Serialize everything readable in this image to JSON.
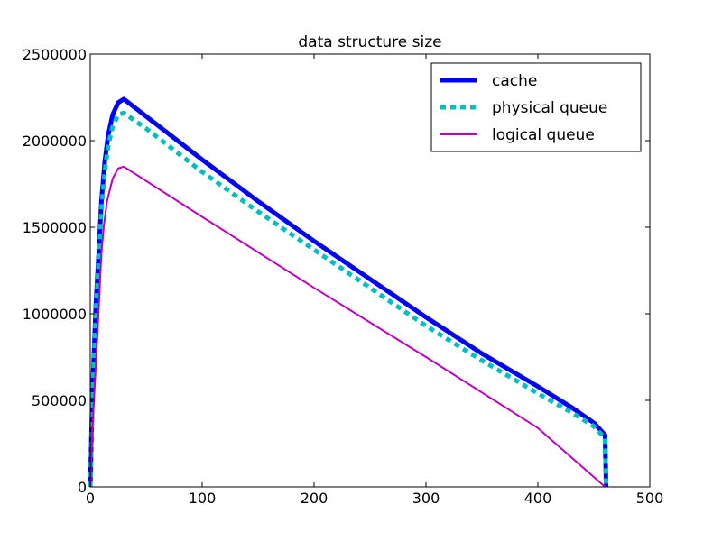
{
  "chart_data": {
    "type": "line",
    "title": "data structure size",
    "xlabel": "",
    "ylabel": "",
    "xlim": [
      0,
      500
    ],
    "ylim": [
      0,
      2500000
    ],
    "xticks": [
      0,
      100,
      200,
      300,
      400,
      500
    ],
    "yticks": [
      0,
      500000,
      1000000,
      1500000,
      2000000,
      2500000
    ],
    "grid": false,
    "legend_position": "upper right",
    "series": [
      {
        "name": "cache",
        "color": "#0000ff",
        "style": "solid-thick",
        "x": [
          0,
          2,
          5,
          8,
          10,
          13,
          16,
          20,
          25,
          30,
          50,
          100,
          150,
          200,
          250,
          300,
          350,
          400,
          430,
          450,
          460,
          460.5,
          461
        ],
        "y": [
          0,
          550000,
          1050000,
          1400000,
          1650000,
          1880000,
          2030000,
          2150000,
          2220000,
          2240000,
          2140000,
          1890000,
          1650000,
          1420000,
          1200000,
          980000,
          770000,
          580000,
          460000,
          370000,
          300000,
          150000,
          0
        ]
      },
      {
        "name": "physical queue",
        "color": "#00bfbf",
        "style": "dashed-thick",
        "x": [
          0,
          2,
          5,
          8,
          10,
          13,
          16,
          20,
          25,
          30,
          50,
          100,
          150,
          200,
          250,
          300,
          350,
          400,
          430,
          450,
          460,
          460.5,
          461
        ],
        "y": [
          0,
          520000,
          1000000,
          1350000,
          1600000,
          1820000,
          1970000,
          2080000,
          2150000,
          2160000,
          2070000,
          1820000,
          1590000,
          1370000,
          1150000,
          930000,
          730000,
          540000,
          430000,
          350000,
          280000,
          140000,
          0
        ]
      },
      {
        "name": "logical queue",
        "color": "#bf00bf",
        "style": "solid-thin",
        "x": [
          0,
          2,
          5,
          8,
          9,
          10,
          12,
          15,
          20,
          25,
          30,
          100,
          200,
          300,
          400,
          460
        ],
        "y": [
          0,
          350000,
          700000,
          1080000,
          1230000,
          1350000,
          1500000,
          1650000,
          1780000,
          1840000,
          1850000,
          1560000,
          1150000,
          750000,
          340000,
          0
        ]
      }
    ]
  }
}
